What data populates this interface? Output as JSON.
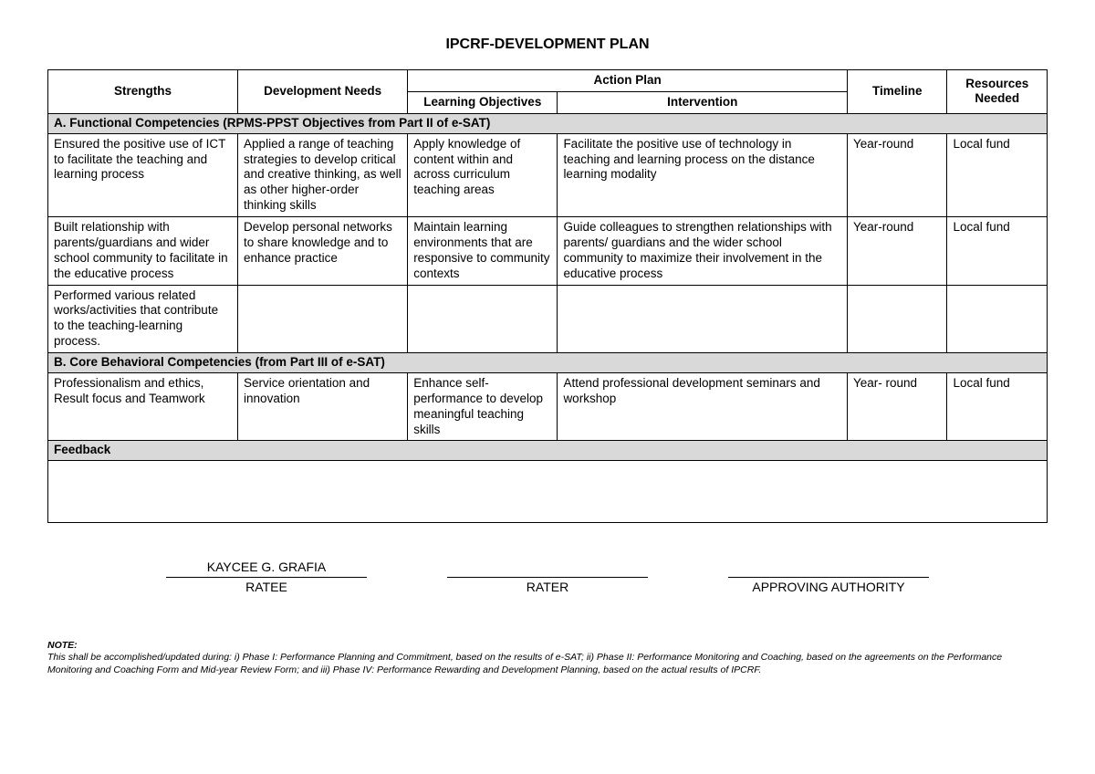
{
  "title": "IPCRF-DEVELOPMENT PLAN",
  "headers": {
    "strengths": "Strengths",
    "devneeds": "Development Needs",
    "actionplan": "Action Plan",
    "learning": "Learning Objectives",
    "intervention": "Intervention",
    "timeline": "Timeline",
    "resources": "Resources Needed"
  },
  "sectionA": "A. Functional Competencies (RPMS-PPST Objectives from Part II of e-SAT)",
  "rowsA": [
    {
      "strengths": "Ensured the positive use of ICT to facilitate the teaching and learning process",
      "devneeds": "Applied  a range of teaching strategies to develop critical and creative thinking, as well as other higher-order thinking skills",
      "learning": "Apply knowledge of content within and across curriculum teaching areas",
      "intervention": "Facilitate the positive use of technology in teaching and learning process on the distance learning modality",
      "timeline": "Year-round",
      "resources": "Local fund"
    },
    {
      "strengths": "Built relationship with parents/guardians and wider school community to facilitate in the educative process",
      "devneeds": "Develop personal networks to share knowledge and to enhance practice",
      "learning": "Maintain learning environments that are responsive to community contexts",
      "intervention": "Guide colleagues to strengthen relationships with parents/ guardians and the wider school community to maximize their involvement in the educative process",
      "timeline": "Year-round",
      "resources": "Local fund"
    },
    {
      "strengths": "Performed various related works/activities that contribute to the teaching-learning process.",
      "devneeds": "",
      "learning": "",
      "intervention": "",
      "timeline": "",
      "resources": ""
    }
  ],
  "sectionB": "B. Core Behavioral Competencies (from Part III of e-SAT)",
  "rowsB": [
    {
      "strengths": "Professionalism and ethics, Result focus and Teamwork",
      "devneeds": "Service orientation and innovation",
      "learning": "Enhance self-performance to develop meaningful teaching skills",
      "intervention": "Attend professional development seminars and workshop",
      "timeline": "Year- round",
      "resources": "Local fund"
    }
  ],
  "feedback_label": "Feedback",
  "signatures": {
    "ratee_name": "KAYCEE G. GRAFIA",
    "ratee_role": "RATEE",
    "rater_name": "",
    "rater_role": "RATER",
    "approving_name": "",
    "approving_role": "APPROVING AUTHORITY"
  },
  "note_label": "NOTE:",
  "note_text": "This shall be accomplished/updated during: i) Phase I: Performance Planning and Commitment, based on the results of e-SAT; ii) Phase II: Performance Monitoring and Coaching, based on the agreements on the Performance Monitoring and Coaching Form and Mid-year Review Form; and iii) Phase IV: Performance Rewarding and Development Planning, based on the actual results of IPCRF.",
  "col_widths": {
    "strengths": "19%",
    "devneeds": "17%",
    "learning": "15%",
    "intervention": "29%",
    "timeline": "10%",
    "resources": "10%"
  }
}
